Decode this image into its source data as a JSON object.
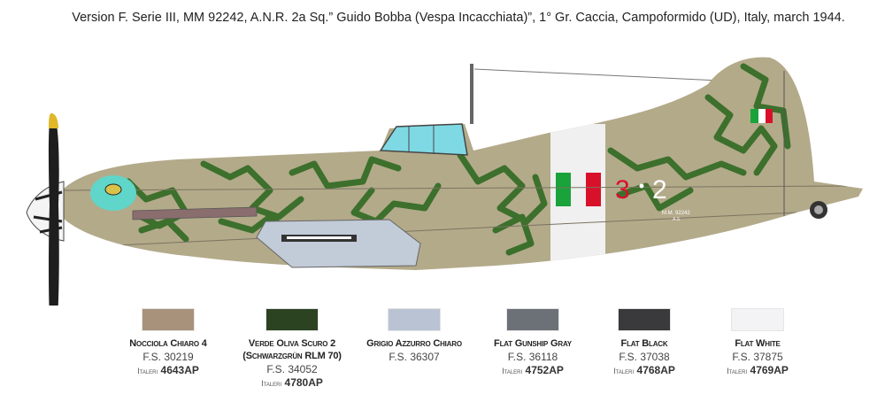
{
  "caption": "Version F. Serie III, MM 92242, A.N.R. 2a Sq.” Guido Bobba (Vespa Incacchiata)”, 1° Gr. Caccia, Campoformido (UD), Italy, march 1944.",
  "aircraft": {
    "fuselage_code_left": "3",
    "fuselage_code_right": "2",
    "serial": "M.M. 92242",
    "serial_sub": "A.S",
    "colors": {
      "camo_base": "#b3aa8a",
      "camo_mottle": "#2f6a22",
      "underside": "#c2cbd8",
      "band": "#f0f0f0",
      "flag_green": "#19a33a",
      "flag_red": "#d9102a"
    }
  },
  "palette": [
    {
      "name": "Nocciola Chiaro 4",
      "fs": "F.S. 30219",
      "brand": "Italeri",
      "code": "4643AP",
      "color": "#a8927c"
    },
    {
      "name": "Verde Oliva Scuro 2",
      "subname": "(Schwarzgrün RLM 70)",
      "fs": "F.S. 34052",
      "brand": "Italeri",
      "code": "4780AP",
      "color": "#2c4322"
    },
    {
      "name": "Grigio Azzurro Chiaro",
      "fs": "F.S. 36307",
      "color": "#b9c3d3"
    },
    {
      "name": "Flat Gunship Gray",
      "fs": "F.S. 36118",
      "brand": "Italeri",
      "code": "4752AP",
      "color": "#6c7178"
    },
    {
      "name": "Flat Black",
      "fs": "F.S. 37038",
      "brand": "Italeri",
      "code": "4768AP",
      "color": "#3a3a3c"
    },
    {
      "name": "Flat White",
      "fs": "F.S. 37875",
      "brand": "Italeri",
      "code": "4769AP",
      "color": "#f3f3f5"
    }
  ]
}
